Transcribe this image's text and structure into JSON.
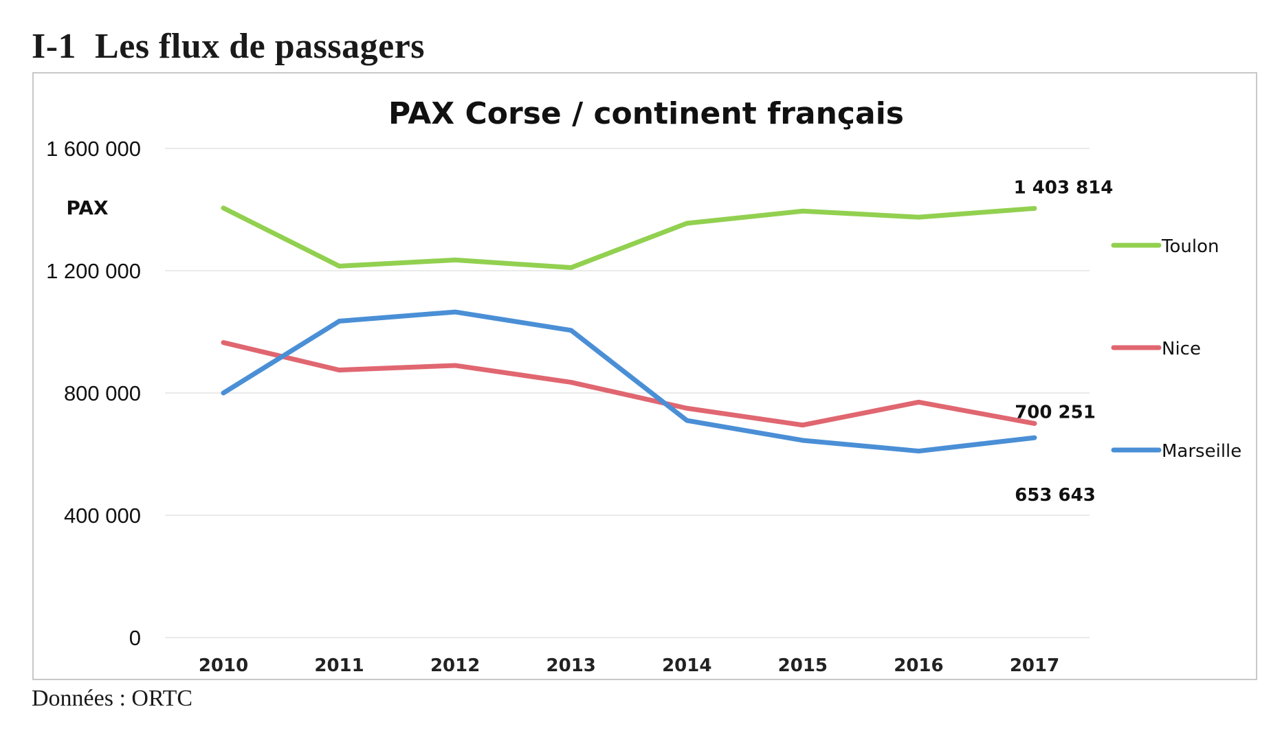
{
  "page": {
    "heading": "I-1  Les flux de passagers",
    "source": "Données : ORTC"
  },
  "chart_data": {
    "type": "line",
    "title": "PAX  Corse / continent français",
    "ylabel": "PAX",
    "xlabel": "",
    "categories": [
      "2010",
      "2011",
      "2012",
      "2013",
      "2014",
      "2015",
      "2016",
      "2017"
    ],
    "ylim": [
      0,
      1600000
    ],
    "yticks": [
      0,
      400000,
      800000,
      1200000,
      1600000
    ],
    "ytick_labels": [
      "0",
      "400 000",
      "800 000",
      "1 200 000",
      "1 600 000"
    ],
    "grid": true,
    "legend_position": "right",
    "series": [
      {
        "name": "Toulon",
        "color": "#92d050",
        "values": [
          1405000,
          1215000,
          1235000,
          1210000,
          1355000,
          1395000,
          1375000,
          1403814
        ]
      },
      {
        "name": "Nice",
        "color": "#e06670",
        "values": [
          965000,
          875000,
          890000,
          835000,
          750000,
          695000,
          770000,
          700251
        ]
      },
      {
        "name": "Marseille",
        "color": "#4a8fd6",
        "values": [
          800000,
          1035000,
          1065000,
          1005000,
          710000,
          645000,
          610000,
          653643
        ]
      }
    ],
    "annotations": [
      {
        "text": "1 403 814",
        "series": "Toulon"
      },
      {
        "text": "700 251",
        "series": "Nice"
      },
      {
        "text": "653 643",
        "series": "Marseille"
      }
    ]
  }
}
